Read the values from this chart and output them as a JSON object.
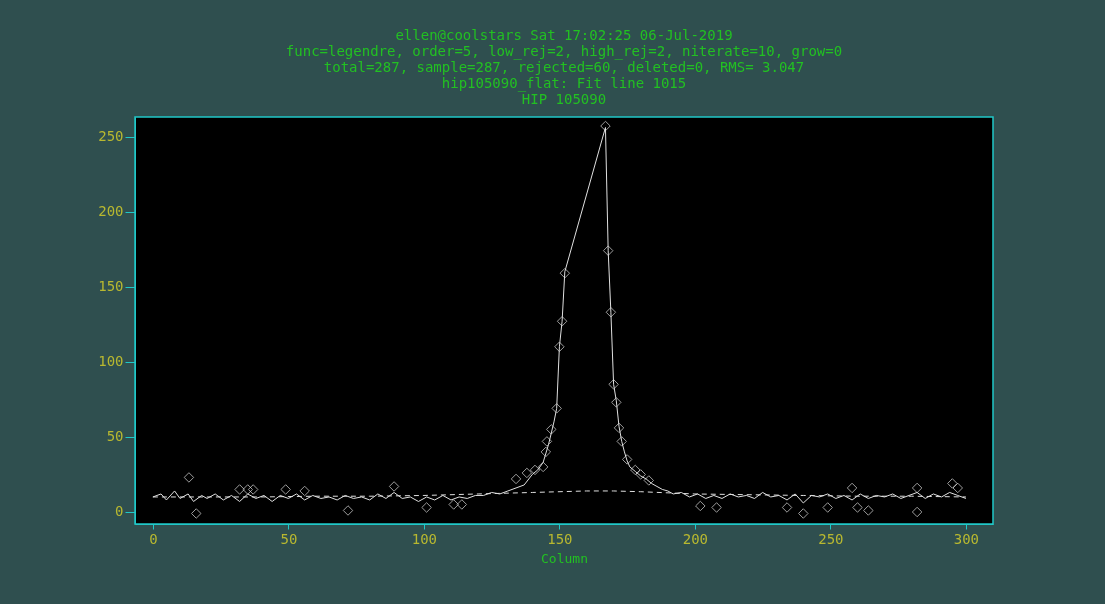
{
  "chart_data": {
    "type": "line",
    "title": "HIP 105090",
    "annotations": [
      "ellen@coolstars Sat 17:02:25 06-Jul-2019",
      "func=legendre, order=5, low_rej=2, high_rej=2, niterate=10, grow=0",
      "total=287, sample=287, rejected=60, deleted=0, RMS=  3.047",
      "hip105090_flat: Fit line 1015"
    ],
    "xlabel": "Column",
    "xlim": [
      -6.6,
      310
    ],
    "ylim": [
      -8,
      263
    ],
    "xticks": [
      0,
      50,
      100,
      150,
      200,
      250,
      300
    ],
    "yticks": [
      0,
      50,
      100,
      150,
      200,
      250
    ],
    "grid": false,
    "series": [
      {
        "color": "#e0e0e0",
        "line_style": "solid",
        "marker": "none",
        "x": [
          0,
          3,
          5,
          8,
          10,
          13,
          15,
          18,
          20,
          23,
          26,
          29,
          32,
          35,
          38,
          41,
          44,
          47,
          50,
          53,
          56,
          59,
          62,
          65,
          68,
          71,
          74,
          77,
          80,
          83,
          86,
          89,
          92,
          95,
          98,
          101,
          104,
          107,
          110,
          113,
          116,
          119,
          122,
          125,
          128,
          131,
          134,
          137,
          140,
          142,
          144,
          146,
          148,
          149,
          150,
          151,
          152,
          167,
          168,
          169,
          170,
          171,
          172,
          173,
          174,
          175,
          176,
          178,
          180,
          182,
          184,
          186,
          188,
          190,
          192,
          195,
          198,
          201,
          204,
          207,
          210,
          213,
          216,
          219,
          222,
          225,
          228,
          231,
          234,
          237,
          240,
          243,
          246,
          249,
          252,
          255,
          258,
          261,
          264,
          267,
          270,
          273,
          276,
          279,
          282,
          285,
          288,
          291,
          294,
          297,
          300
        ],
        "values": [
          10,
          12,
          8,
          14,
          9,
          12,
          7,
          11,
          9,
          12,
          8,
          11,
          7,
          12,
          9,
          11,
          7,
          11,
          9,
          12,
          8,
          11,
          9,
          10,
          8,
          11,
          9,
          10,
          8,
          12,
          9,
          13,
          9,
          10,
          7,
          10,
          8,
          11,
          8,
          10,
          9,
          11,
          11,
          13,
          12,
          14,
          16,
          18,
          25,
          28,
          33,
          45,
          60,
          69,
          110,
          127,
          160,
          256,
          174,
          133,
          85,
          74,
          57,
          47,
          40,
          34,
          30,
          27,
          24,
          22,
          19,
          17,
          15,
          14,
          12,
          13,
          10,
          12,
          9,
          11,
          9,
          12,
          10,
          11,
          9,
          13,
          10,
          11,
          8,
          12,
          6,
          11,
          10,
          12,
          9,
          11,
          8,
          12,
          9,
          11,
          10,
          12,
          9,
          11,
          13,
          9,
          12,
          10,
          13,
          11,
          9
        ]
      },
      {
        "color": "#e0e0e0",
        "line_style": "dashed",
        "marker": "none",
        "x": [
          0,
          20,
          40,
          60,
          80,
          100,
          120,
          140,
          160,
          170,
          180,
          200,
          220,
          240,
          260,
          280,
          300
        ],
        "values": [
          10,
          10,
          10,
          10.5,
          10.5,
          11,
          12,
          13,
          14,
          14,
          13.5,
          12,
          11.5,
          11,
          10.5,
          10.5,
          10
        ]
      },
      {
        "type": "scatter",
        "color": "#e0e0e0",
        "marker": "diamond",
        "x": [
          13.3,
          16,
          32,
          35,
          37,
          49,
          56,
          72,
          89,
          101,
          111,
          114,
          134,
          138,
          141,
          144,
          145,
          145.4,
          147,
          149,
          150,
          151,
          152,
          167,
          168,
          169,
          170,
          171,
          172,
          173,
          175,
          178,
          180,
          183,
          202,
          208,
          234,
          240,
          249,
          258,
          260,
          264,
          282,
          282,
          295,
          297
        ],
        "values": [
          23,
          -1,
          15,
          15,
          15,
          15,
          14,
          1,
          17,
          3,
          5,
          5,
          22,
          26,
          28,
          30,
          40,
          47,
          55,
          69,
          110,
          127,
          159,
          257,
          174,
          133,
          85,
          73,
          56,
          47,
          35,
          28,
          25,
          21,
          4,
          3,
          3,
          -1,
          3,
          16,
          3,
          1,
          16,
          0,
          19,
          16
        ]
      }
    ]
  }
}
